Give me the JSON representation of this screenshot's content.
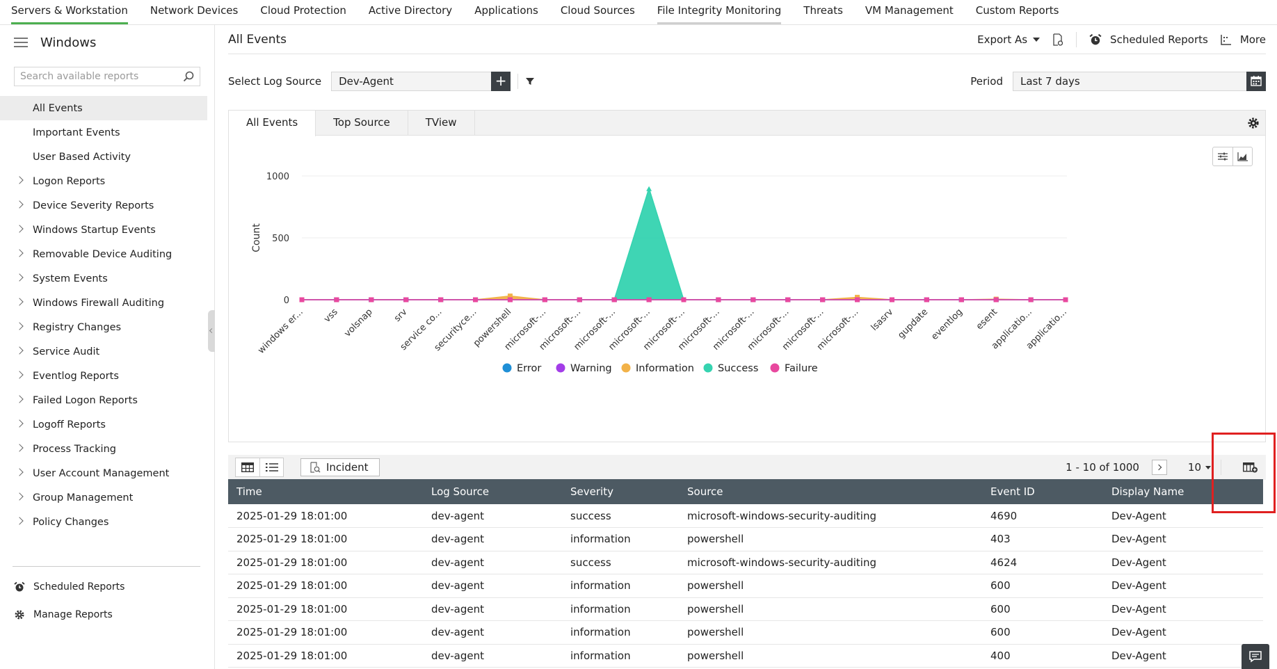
{
  "topnav": {
    "tabs": [
      "Servers & Workstation",
      "Network Devices",
      "Cloud Protection",
      "Active Directory",
      "Applications",
      "Cloud Sources",
      "File Integrity Monitoring",
      "Threats",
      "VM Management",
      "Custom Reports"
    ]
  },
  "sidebar": {
    "title": "Windows",
    "search_placeholder": "Search available reports",
    "items": [
      {
        "label": "All Events",
        "expandable": false
      },
      {
        "label": "Important Events",
        "expandable": false
      },
      {
        "label": "User Based Activity",
        "expandable": false
      },
      {
        "label": "Logon Reports",
        "expandable": true
      },
      {
        "label": "Device Severity Reports",
        "expandable": true
      },
      {
        "label": "Windows Startup Events",
        "expandable": true
      },
      {
        "label": "Removable Device Auditing",
        "expandable": true
      },
      {
        "label": "System Events",
        "expandable": true
      },
      {
        "label": "Windows Firewall Auditing",
        "expandable": true
      },
      {
        "label": "Registry Changes",
        "expandable": true
      },
      {
        "label": "Service Audit",
        "expandable": true
      },
      {
        "label": "Eventlog Reports",
        "expandable": true
      },
      {
        "label": "Failed Logon Reports",
        "expandable": true
      },
      {
        "label": "Logoff Reports",
        "expandable": true
      },
      {
        "label": "Process Tracking",
        "expandable": true
      },
      {
        "label": "User Account Management",
        "expandable": true
      },
      {
        "label": "Group Management",
        "expandable": true
      },
      {
        "label": "Policy Changes",
        "expandable": true
      }
    ],
    "bottom": {
      "scheduled": "Scheduled Reports",
      "manage": "Manage Reports"
    }
  },
  "header": {
    "title": "All Events",
    "export": "Export As",
    "scheduled": "Scheduled Reports",
    "more": "More"
  },
  "filters": {
    "log_source_label": "Select Log Source",
    "log_source_value": "Dev-Agent",
    "period_label": "Period",
    "period_value": "Last 7 days"
  },
  "tabs": [
    "All Events",
    "Top Source",
    "TView"
  ],
  "colors": {
    "Error": "#1f8fd6",
    "Warning": "#a33de8",
    "Information": "#f2b248",
    "Success": "#35d3b0",
    "Failure": "#e8489e",
    "header": "#4d5a63",
    "accent": "#4caf50"
  },
  "chart_data": {
    "type": "area",
    "ylabel": "Count",
    "ylim": [
      0,
      1000
    ],
    "yticks": [
      0,
      500,
      1000
    ],
    "categories": [
      "windows er...",
      "vss",
      "volsnap",
      "srv",
      "service co...",
      "securityce...",
      "powershell",
      "microsoft-...",
      "microsoft-...",
      "microsoft-...",
      "microsoft-...",
      "microsoft-...",
      "microsoft-...",
      "microsoft-...",
      "microsoft-...",
      "microsoft-...",
      "microsoft-...",
      "lsasrv",
      "gupdate",
      "eventlog",
      "esent",
      "applicatio...",
      "applicatio..."
    ],
    "series": [
      {
        "name": "Error",
        "values": [
          0,
          0,
          0,
          0,
          0,
          0,
          0,
          0,
          0,
          0,
          0,
          0,
          0,
          0,
          0,
          0,
          0,
          0,
          0,
          0,
          0,
          0,
          0
        ]
      },
      {
        "name": "Warning",
        "values": [
          0,
          0,
          0,
          0,
          0,
          0,
          0,
          0,
          0,
          0,
          0,
          0,
          0,
          0,
          0,
          0,
          0,
          0,
          0,
          0,
          0,
          0,
          0
        ]
      },
      {
        "name": "Information",
        "values": [
          0,
          0,
          0,
          0,
          0,
          0,
          30,
          0,
          0,
          0,
          0,
          0,
          0,
          0,
          0,
          0,
          20,
          0,
          0,
          0,
          5,
          0,
          0
        ]
      },
      {
        "name": "Success",
        "values": [
          0,
          0,
          0,
          0,
          0,
          0,
          0,
          0,
          0,
          0,
          900,
          0,
          0,
          0,
          0,
          0,
          0,
          0,
          0,
          0,
          0,
          0,
          0
        ]
      },
      {
        "name": "Failure",
        "values": [
          0,
          0,
          0,
          0,
          0,
          0,
          0,
          0,
          0,
          0,
          0,
          0,
          0,
          0,
          0,
          0,
          0,
          0,
          0,
          0,
          0,
          0,
          0
        ]
      }
    ],
    "legend_position": "bottom"
  },
  "grid_toolbar": {
    "incident": "Incident",
    "range": "1 - 10 of 1000",
    "per_page": "10"
  },
  "table": {
    "columns": [
      "Time",
      "Log Source",
      "Severity",
      "Source",
      "Event ID",
      "Display Name"
    ],
    "rows": [
      [
        "2025-01-29 18:01:00",
        "dev-agent",
        "success",
        "microsoft-windows-security-auditing",
        "4690",
        "Dev-Agent"
      ],
      [
        "2025-01-29 18:01:00",
        "dev-agent",
        "information",
        "powershell",
        "403",
        "Dev-Agent"
      ],
      [
        "2025-01-29 18:01:00",
        "dev-agent",
        "success",
        "microsoft-windows-security-auditing",
        "4624",
        "Dev-Agent"
      ],
      [
        "2025-01-29 18:01:00",
        "dev-agent",
        "information",
        "powershell",
        "600",
        "Dev-Agent"
      ],
      [
        "2025-01-29 18:01:00",
        "dev-agent",
        "information",
        "powershell",
        "600",
        "Dev-Agent"
      ],
      [
        "2025-01-29 18:01:00",
        "dev-agent",
        "information",
        "powershell",
        "600",
        "Dev-Agent"
      ],
      [
        "2025-01-29 18:01:00",
        "dev-agent",
        "information",
        "powershell",
        "400",
        "Dev-Agent"
      ]
    ]
  }
}
